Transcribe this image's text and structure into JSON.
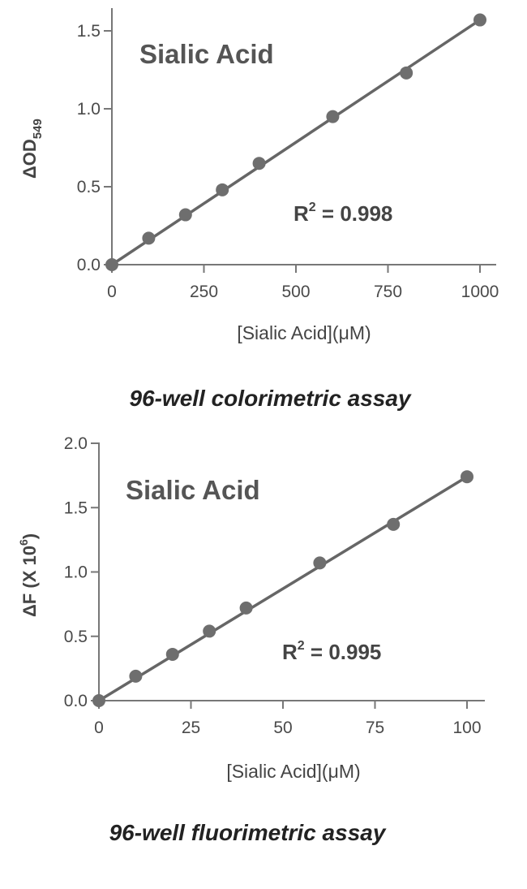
{
  "chart_data": [
    {
      "type": "scatter",
      "title": "Sialic Acid",
      "xlabel": "[Sialic Acid](μM)",
      "ylabel": "ΔOD549",
      "ylabel_main": "ΔOD",
      "ylabel_sub": "549",
      "annotation_main": "R",
      "annotation_sup": "2",
      "annotation_rest": " = 0.998",
      "caption": "96-well colorimetric assay",
      "x_ticks": [
        "0",
        "250",
        "500",
        "750",
        "1000"
      ],
      "y_ticks": [
        "0.0",
        "0.5",
        "1.0",
        "1.5"
      ],
      "xlim": [
        0,
        1000
      ],
      "ylim": [
        0,
        1.5
      ],
      "x": [
        0,
        100,
        200,
        300,
        400,
        600,
        800,
        1000
      ],
      "y": [
        0.0,
        0.17,
        0.32,
        0.48,
        0.65,
        0.95,
        1.23,
        1.57
      ],
      "fit_line": [
        [
          0,
          0.0
        ],
        [
          1000,
          1.57
        ]
      ],
      "grid": false
    },
    {
      "type": "scatter",
      "title": "Sialic Acid",
      "xlabel": "[Sialic Acid](μM)",
      "ylabel": "ΔF (X 106)",
      "ylabel_main": "ΔF (X 10",
      "ylabel_sup": "6",
      "ylabel_end": ")",
      "annotation_main": "R",
      "annotation_sup": "2",
      "annotation_rest": " = 0.995",
      "caption": "96-well fluorimetric assay",
      "x_ticks": [
        "0",
        "25",
        "50",
        "75",
        "100"
      ],
      "y_ticks": [
        "0.0",
        "0.5",
        "1.0",
        "1.5",
        "2.0"
      ],
      "xlim": [
        0,
        100
      ],
      "ylim": [
        0,
        2.0
      ],
      "x": [
        0,
        10,
        20,
        30,
        40,
        60,
        80,
        100
      ],
      "y": [
        0.0,
        0.19,
        0.36,
        0.54,
        0.72,
        1.07,
        1.37,
        1.74
      ],
      "fit_line": [
        [
          0,
          0.0
        ],
        [
          100,
          1.74
        ]
      ],
      "grid": false
    }
  ]
}
